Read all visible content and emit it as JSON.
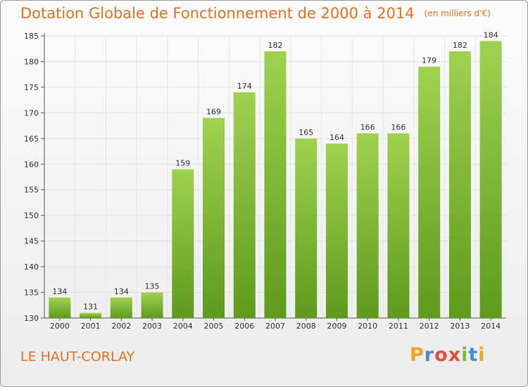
{
  "chart_data": {
    "type": "bar",
    "title": "Dotation Globale de Fonctionnement de 2000 à 2014",
    "subtitle": "(en milliers d'€)",
    "categories": [
      "2000",
      "2001",
      "2002",
      "2003",
      "2004",
      "2005",
      "2006",
      "2007",
      "2008",
      "2009",
      "2010",
      "2011",
      "2012",
      "2013",
      "2014"
    ],
    "values": [
      134,
      131,
      134,
      135,
      159,
      169,
      174,
      182,
      165,
      164,
      166,
      166,
      179,
      182,
      184
    ],
    "ylim": [
      130,
      185
    ],
    "yticks": [
      130,
      135,
      140,
      145,
      150,
      155,
      160,
      165,
      170,
      175,
      180,
      185
    ],
    "grid": true,
    "bar_color": "#7dba2f"
  },
  "commune": "LE HAUT-CORLAY",
  "logo": {
    "letters": [
      "P",
      "r",
      "o",
      "x",
      "i",
      "t",
      "i"
    ],
    "colors": [
      "#f4a21f",
      "#3d8fd6",
      "#e84b3a",
      "#e84b3a",
      "#7dba2f",
      "#3d8fd6",
      "#f4a21f"
    ]
  }
}
